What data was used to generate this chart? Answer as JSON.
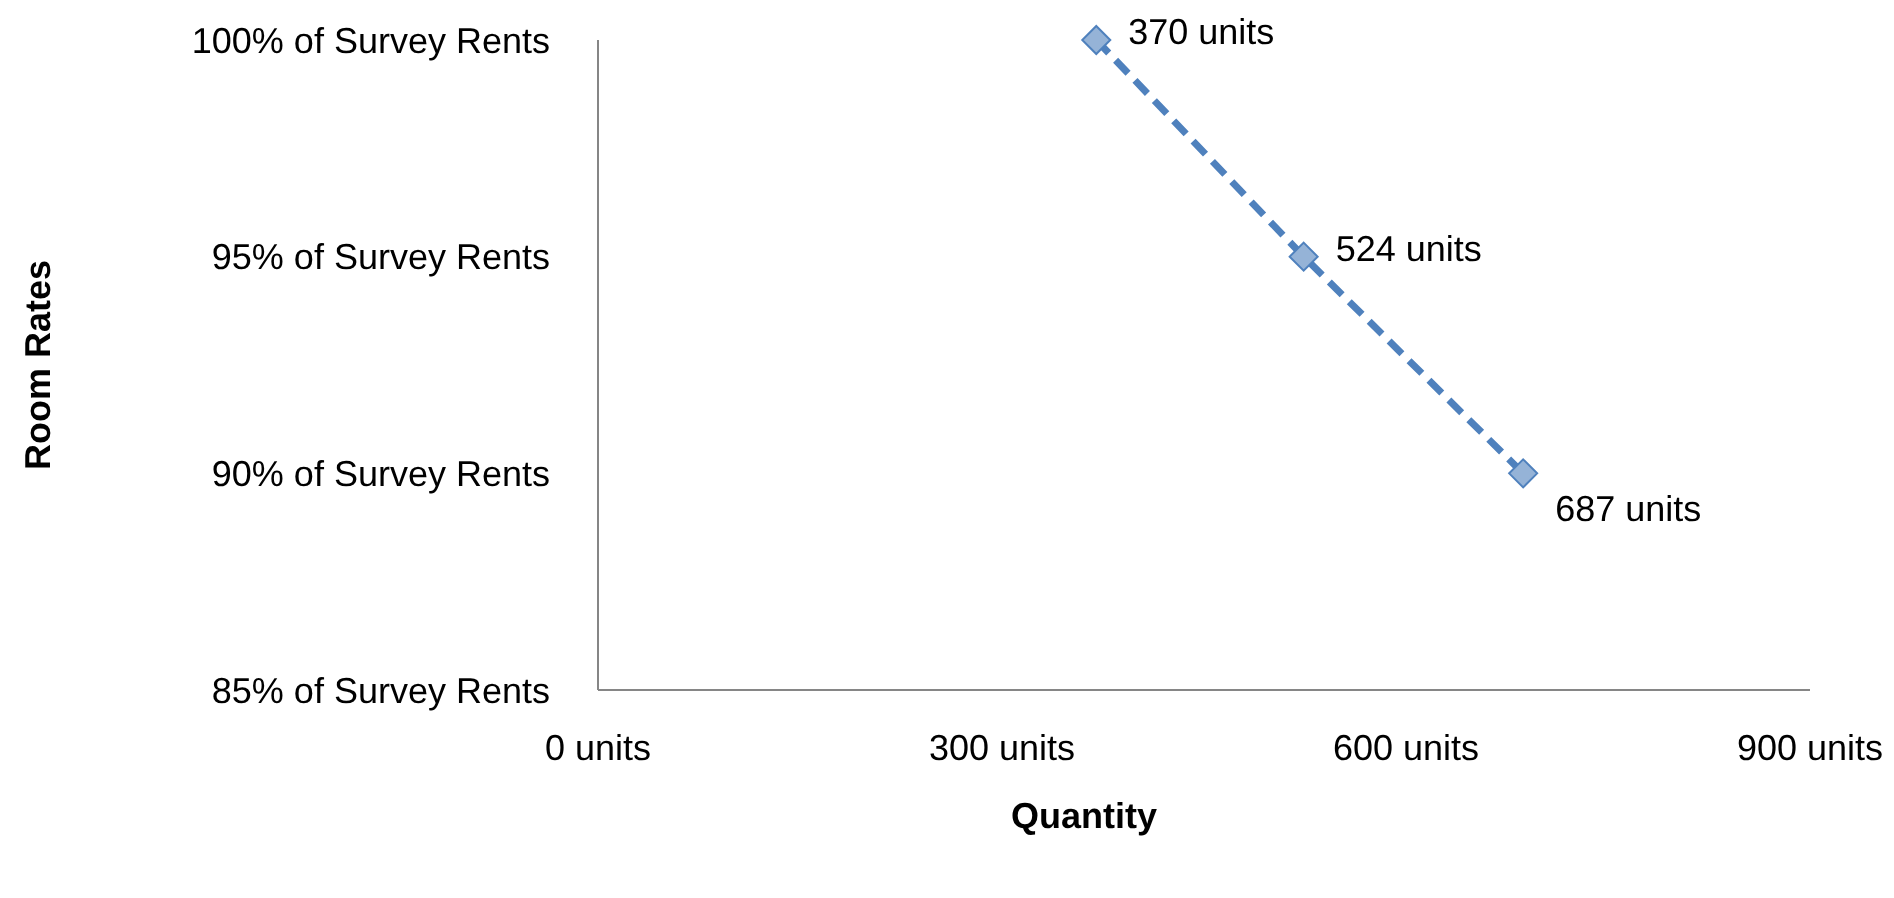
{
  "chart_data": {
    "type": "line",
    "xlabel": "Quantity",
    "ylabel": "Room Rates",
    "x": [
      370,
      524,
      687
    ],
    "series": [
      {
        "color": "#4f81bd",
        "values": [
          100,
          95,
          90
        ]
      }
    ],
    "annotations": [
      {
        "text": "370 units",
        "x": 370,
        "y": 100
      },
      {
        "text": "524 units",
        "x": 524,
        "y": 95
      },
      {
        "text": "687 units",
        "x": 687,
        "y": 90
      }
    ],
    "xlim": [
      0,
      900
    ],
    "xticks": [
      {
        "value": 0,
        "label": "0 units"
      },
      {
        "value": 300,
        "label": "300 units"
      },
      {
        "value": 600,
        "label": "600 units"
      },
      {
        "value": 900,
        "label": "900 units"
      }
    ],
    "ylim": [
      85,
      100
    ],
    "yticks": [
      {
        "value": 85,
        "label": "85% of Survey Rents"
      },
      {
        "value": 90,
        "label": "90% of Survey Rents"
      },
      {
        "value": 95,
        "label": "95% of Survey Rents"
      },
      {
        "value": 100,
        "label": "100% of Survey Rents"
      }
    ],
    "marker": "diamond",
    "line_style": "dashed",
    "grid": false
  }
}
